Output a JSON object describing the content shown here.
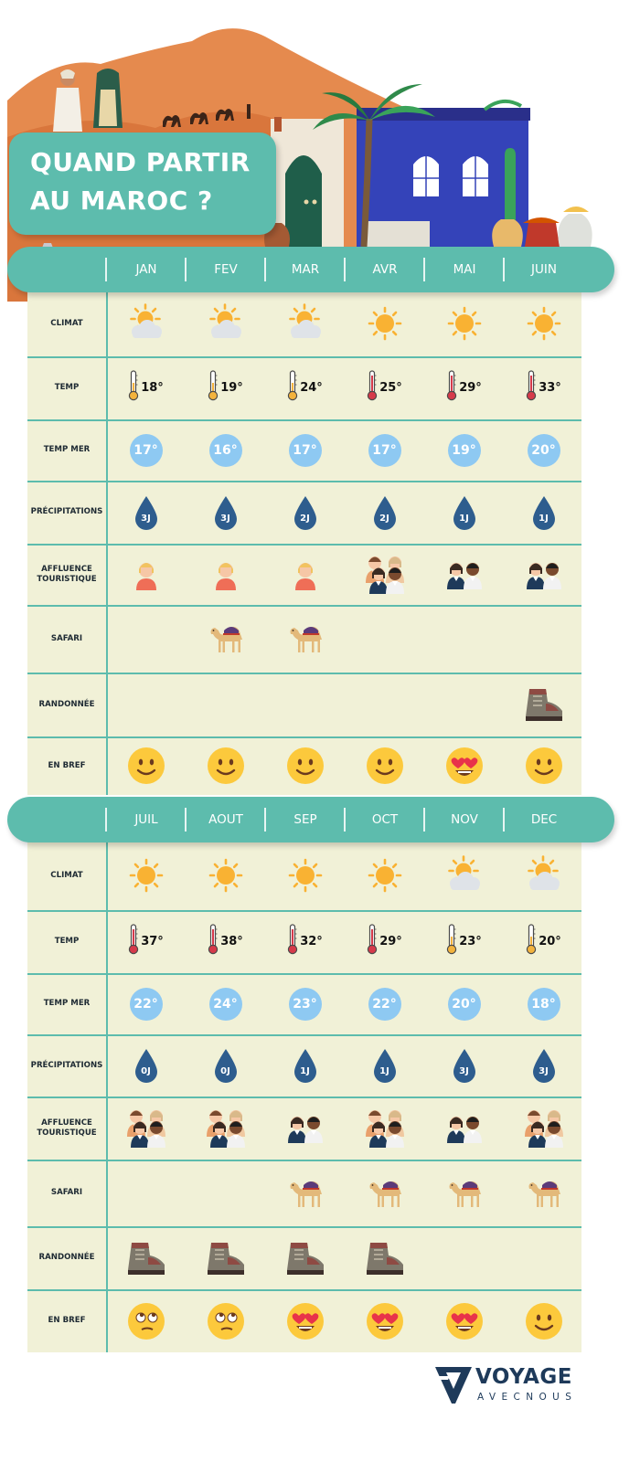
{
  "title": {
    "line1": "QUAND PARTIR",
    "line2": "AU MAROC ?"
  },
  "row_labels": [
    "CLIMAT",
    "TEMP",
    "TEMP MER",
    "PRÉCIPITATIONS",
    "AFFLUENCE TOURISTIQUE",
    "SAFARI",
    "RANDONNÉE",
    "EN BREF"
  ],
  "sections": [
    {
      "months": [
        {
          "name": "JAN",
          "climat": "sun-cloud-icon",
          "temp": "18°",
          "thermo": "cold",
          "sea": "17°",
          "rain": "3J",
          "crowd": 1,
          "safari": false,
          "hike": false,
          "mood": "smile-emoji"
        },
        {
          "name": "FEV",
          "climat": "sun-cloud-icon",
          "temp": "19°",
          "thermo": "cold",
          "sea": "16°",
          "rain": "3J",
          "crowd": 1,
          "safari": true,
          "hike": false,
          "mood": "smile-emoji"
        },
        {
          "name": "MAR",
          "climat": "sun-cloud-icon",
          "temp": "24°",
          "thermo": "cold",
          "sea": "17°",
          "rain": "2J",
          "crowd": 1,
          "safari": true,
          "hike": false,
          "mood": "smile-emoji"
        },
        {
          "name": "AVR",
          "climat": "sun-icon",
          "temp": "25°",
          "thermo": "hot",
          "sea": "17°",
          "rain": "2J",
          "crowd": 3,
          "safari": false,
          "hike": false,
          "mood": "smile-emoji"
        },
        {
          "name": "MAI",
          "climat": "sun-icon",
          "temp": "29°",
          "thermo": "hot",
          "sea": "19°",
          "rain": "1J",
          "crowd": 2,
          "safari": false,
          "hike": false,
          "mood": "heart-eyes-emoji"
        },
        {
          "name": "JUIN",
          "climat": "sun-icon",
          "temp": "33°",
          "thermo": "hot",
          "sea": "20°",
          "rain": "1J",
          "crowd": 2,
          "safari": false,
          "hike": true,
          "mood": "smile-emoji"
        }
      ]
    },
    {
      "months": [
        {
          "name": "JUIL",
          "climat": "sun-icon",
          "temp": "37°",
          "thermo": "hot",
          "sea": "22°",
          "rain": "0J",
          "crowd": 3,
          "safari": false,
          "hike": true,
          "mood": "eye-roll-emoji"
        },
        {
          "name": "AOUT",
          "climat": "sun-icon",
          "temp": "38°",
          "thermo": "hot",
          "sea": "24°",
          "rain": "0J",
          "crowd": 3,
          "safari": false,
          "hike": true,
          "mood": "eye-roll-emoji"
        },
        {
          "name": "SEP",
          "climat": "sun-icon",
          "temp": "32°",
          "thermo": "hot",
          "sea": "23°",
          "rain": "1J",
          "crowd": 2,
          "safari": true,
          "hike": true,
          "mood": "heart-eyes-emoji"
        },
        {
          "name": "OCT",
          "climat": "sun-icon",
          "temp": "29°",
          "thermo": "hot",
          "sea": "22°",
          "rain": "1J",
          "crowd": 3,
          "safari": true,
          "hike": true,
          "mood": "heart-eyes-emoji"
        },
        {
          "name": "NOV",
          "climat": "sun-cloud-icon",
          "temp": "23°",
          "thermo": "cold",
          "sea": "20°",
          "rain": "3J",
          "crowd": 2,
          "safari": true,
          "hike": false,
          "mood": "heart-eyes-emoji"
        },
        {
          "name": "DEC",
          "climat": "sun-cloud-icon",
          "temp": "20°",
          "thermo": "cold",
          "sea": "18°",
          "rain": "3J",
          "crowd": 3,
          "safari": true,
          "hike": false,
          "mood": "smile-emoji"
        }
      ]
    }
  ],
  "logo": {
    "word": "VOYAGE",
    "sub": "AVECNOUS"
  },
  "colors": {
    "teal": "#5dbcad",
    "cream": "#f1f1d7",
    "sea_blue": "#8ec9f2",
    "drop_blue": "#2e5d8e",
    "sun": "#f9b233",
    "brand_navy": "#1e3a5a"
  }
}
